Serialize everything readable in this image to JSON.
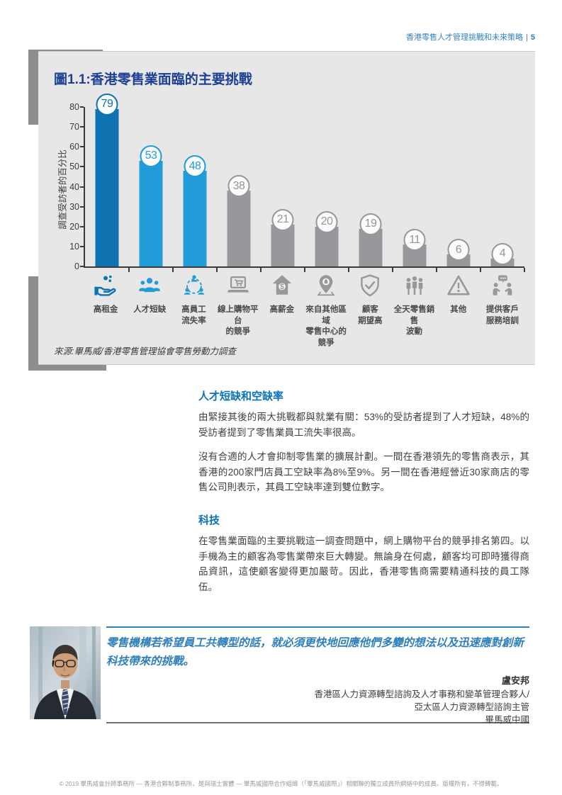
{
  "header": {
    "title": "香港零售人才管理挑戰和未來策略",
    "page_number": "5"
  },
  "chart_panel": {
    "title": "圖1.1:香港零售業面臨的主要挑戰",
    "source": "來源:畢馬威/香港零售管理協會零售勞動力調查"
  },
  "chart_data": {
    "type": "bar",
    "title": "圖1.1:香港零售業面臨的主要挑戰",
    "xlabel": "",
    "ylabel": "調查受訪者的百分比",
    "ylim": [
      0,
      80
    ],
    "ytick_step": 10,
    "grid": false,
    "legend": false,
    "categories": [
      "高租金",
      "人才短缺",
      "高員工\n流失率",
      "線上購物平台\n的競爭",
      "高薪金",
      "來自其他區域\n零售中心的\n競爭",
      "顧客\n期望高",
      "全天零售銷售\n波動",
      "其他",
      "提供客戶\n服務培訓"
    ],
    "values": [
      79,
      53,
      48,
      38,
      21,
      20,
      19,
      11,
      6,
      4
    ],
    "bar_colors": [
      "#0e72b0",
      "#219cd8",
      "#219cd8",
      "#97979c",
      "#97979c",
      "#97979c",
      "#97979c",
      "#97979c",
      "#97979c",
      "#97979c"
    ],
    "icons": [
      "rent-coins-icon",
      "talent-people-icon",
      "staff-turnover-icon",
      "online-shopping-icon",
      "high-salary-icon",
      "region-competition-icon",
      "customer-expectation-icon",
      "sales-fluctuation-icon",
      "other-warning-icon",
      "service-training-icon"
    ]
  },
  "sections": [
    {
      "heading": "人才短缺和空缺率",
      "paragraphs": [
        "由緊接其後的兩大挑戰都與就業有關：53%的受訪者提到了人才短缺，48%的受訪者提到了零售業員工流失率很高。",
        "沒有合適的人才會抑制零售業的擴展計劃。一間在香港領先的零售商表示，其香港的200家門店員工空缺率為8%至9%。另一間在香港經營近30家商店的零售公司則表示，其員工空缺率達到雙位數字。"
      ]
    },
    {
      "heading": "科技",
      "paragraphs": [
        "在零售業面臨的主要挑戰這一調查問題中，網上購物平台的競爭排名第四。以手機為主的顧客為零售業帶來巨大轉變。無論身在何處，顧客均可即時獲得商品資訊，這使顧客變得更加嚴苛。因此，香港零售商需要精通科技的員工隊伍。"
      ]
    }
  ],
  "quote": {
    "text": "零售機構若希望員工共轉型的話，就必須更快地回應他們多變的想法以及迅速應對創新科技帶來的挑戰。",
    "author": "盧安邦",
    "role_lines": [
      "香港區人力資源轉型諮詢及人才事務和變革管理合夥人/",
      "亞太區人力資源轉型諮詢主管",
      "畢馬威中國"
    ]
  },
  "footer": "© 2019 畢馬威會計師事務所 — 香港合夥制事務所，是與瑞士實體 — 畢馬威國際合作組織（「畢馬威國際」）相關聯的獨立成員所網絡中的成員。版權所有，不得轉載。",
  "colors": {
    "accent_navy": "#1d3f94",
    "heading_blue": "#0c72b8",
    "quote_blue": "#2e7fba",
    "bar_primary": "#0e72b0",
    "bar_secondary": "#219cd8",
    "bar_gray": "#97979c",
    "panel_bg": "#e7e7e8",
    "bracket_gray": "#8d8d90"
  }
}
